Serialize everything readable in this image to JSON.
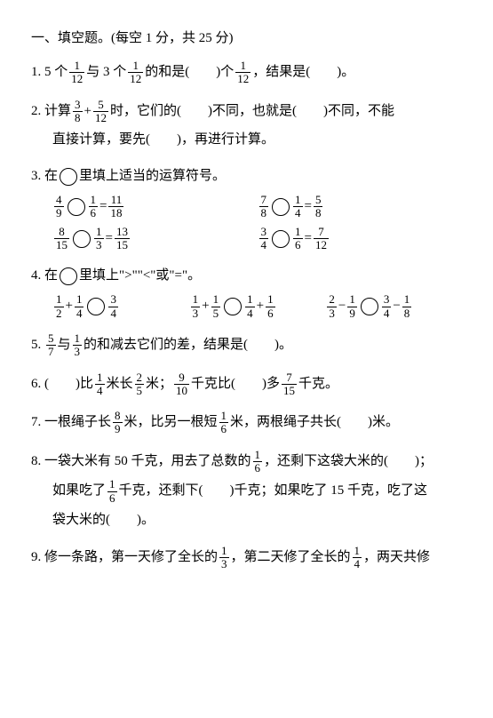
{
  "header": "一、填空题。(每空 1 分，共 25 分)",
  "q1": {
    "num": "1.",
    "pre": "5 个",
    "frac1_num": "1",
    "frac1_den": "12",
    "mid1": "与 3 个",
    "frac2_num": "1",
    "frac2_den": "12",
    "mid2": "的和是(　　)个",
    "frac3_num": "1",
    "frac3_den": "12",
    "tail": "，结果是(　　)。"
  },
  "q2": {
    "num": "2.",
    "pre": "计算",
    "f1n": "3",
    "f1d": "8",
    "plus": "+",
    "f2n": "5",
    "f2d": "12",
    "mid1": "时，它们的(　　)不同，也就是(　　)不同，不能",
    "line2": "直接计算，要先(　　)，再进行计算。"
  },
  "q3": {
    "num": "3.",
    "title": "在",
    "title2": "里填上适当的运算符号。",
    "eqs": [
      {
        "a_n": "4",
        "a_d": "9",
        "b_n": "1",
        "b_d": "6",
        "r_n": "11",
        "r_d": "18"
      },
      {
        "a_n": "7",
        "a_d": "8",
        "b_n": "1",
        "b_d": "4",
        "r_n": "5",
        "r_d": "8"
      },
      {
        "a_n": "8",
        "a_d": "15",
        "b_n": "1",
        "b_d": "3",
        "r_n": "13",
        "r_d": "15"
      },
      {
        "a_n": "3",
        "a_d": "4",
        "b_n": "1",
        "b_d": "6",
        "r_n": "7",
        "r_d": "12"
      }
    ],
    "eq_char": "="
  },
  "q4": {
    "num": "4.",
    "title": "在",
    "title2": "里填上\">\"\"<\"或\"=\"。",
    "e1": {
      "a_n": "1",
      "a_d": "2",
      "p": "+",
      "b_n": "1",
      "b_d": "4",
      "c_n": "3",
      "c_d": "4"
    },
    "e2": {
      "a_n": "1",
      "a_d": "3",
      "p": "+",
      "b_n": "1",
      "b_d": "5",
      "c_n": "1",
      "c_d": "4",
      "p2": "+",
      "d_n": "1",
      "d_d": "6"
    },
    "e3": {
      "a_n": "2",
      "a_d": "3",
      "p": "−",
      "b_n": "1",
      "b_d": "9",
      "c_n": "3",
      "c_d": "4",
      "p2": "−",
      "d_n": "1",
      "d_d": "8"
    }
  },
  "q5": {
    "num": "5.",
    "f1n": "5",
    "f1d": "7",
    "mid": "与",
    "f2n": "1",
    "f2d": "3",
    "tail": "的和减去它们的差，结果是(　　)。"
  },
  "q6": {
    "num": "6.",
    "pre": "(　　)比",
    "f1n": "1",
    "f1d": "4",
    "m1": "米长",
    "f2n": "2",
    "f2d": "5",
    "m2": "米；",
    "f3n": "9",
    "f3d": "10",
    "m3": "千克比(　　)多",
    "f4n": "7",
    "f4d": "15",
    "tail": "千克。"
  },
  "q7": {
    "num": "7.",
    "pre": "一根绳子长",
    "f1n": "8",
    "f1d": "9",
    "m1": "米，比另一根短",
    "f2n": "1",
    "f2d": "6",
    "tail": "米，两根绳子共长(　　)米。"
  },
  "q8": {
    "num": "8.",
    "pre": "一袋大米有 50 千克，用去了总数的",
    "f1n": "1",
    "f1d": "6",
    "m1": "，还剩下这袋大米的(　　)；",
    "l2a": "如果吃了",
    "f2n": "1",
    "f2d": "6",
    "l2b": "千克，还剩下(　　)千克；如果吃了 15 千克，吃了这",
    "l3": "袋大米的(　　)。"
  },
  "q9": {
    "num": "9.",
    "pre": "修一条路，第一天修了全长的",
    "f1n": "1",
    "f1d": "3",
    "m1": "，第二天修了全长的",
    "f2n": "1",
    "f2d": "4",
    "tail": "，两天共修"
  }
}
